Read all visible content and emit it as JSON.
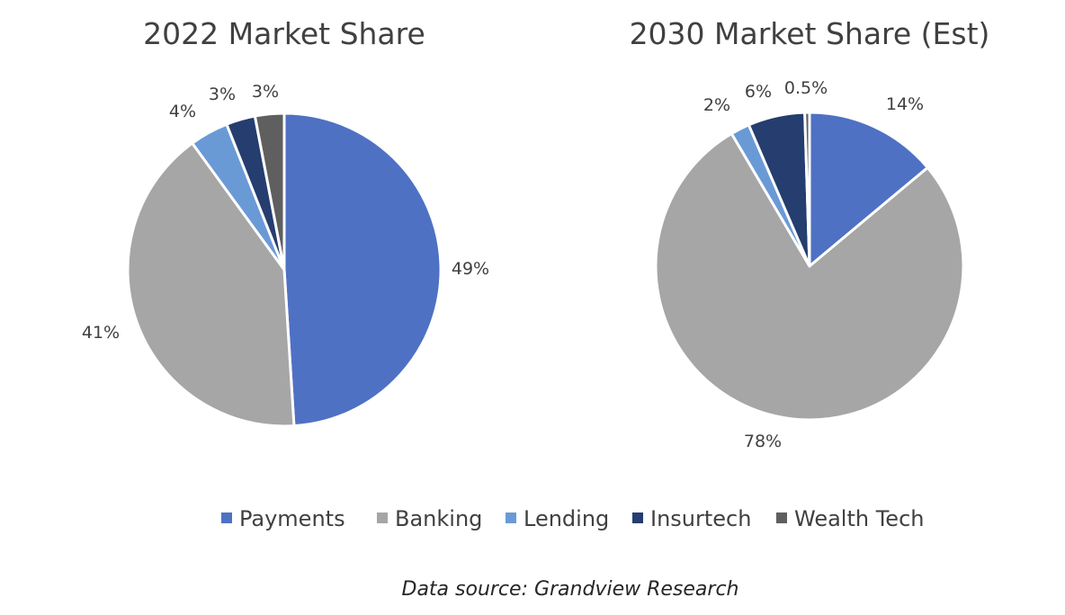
{
  "chart_data": [
    {
      "type": "pie",
      "title": "2022 Market Share",
      "categories": [
        "Payments",
        "Banking",
        "Lending",
        "Insurtech",
        "Wealth Tech"
      ],
      "values": [
        49,
        41,
        4,
        3,
        3
      ],
      "data_labels": [
        "49%",
        "41%",
        "4%",
        "3%",
        "3%"
      ]
    },
    {
      "type": "pie",
      "title": "2030 Market Share (Est)",
      "categories": [
        "Payments",
        "Banking",
        "Lending",
        "Insurtech",
        "Wealth Tech"
      ],
      "values": [
        14,
        78,
        2,
        6,
        0.5
      ],
      "data_labels": [
        "14%",
        "78%",
        "2%",
        "6%",
        "0.5%"
      ]
    }
  ],
  "legend": {
    "placement": "bottom",
    "items": [
      {
        "label": "Payments",
        "color": "#4f71c4"
      },
      {
        "label": "Banking",
        "color": "#a6a6a6"
      },
      {
        "label": "Lending",
        "color": "#6a9ad6"
      },
      {
        "label": "Insurtech",
        "color": "#253d6f"
      },
      {
        "label": "Wealth Tech",
        "color": "#5f5f5f"
      }
    ]
  },
  "source": "Data source: Grandview Research"
}
